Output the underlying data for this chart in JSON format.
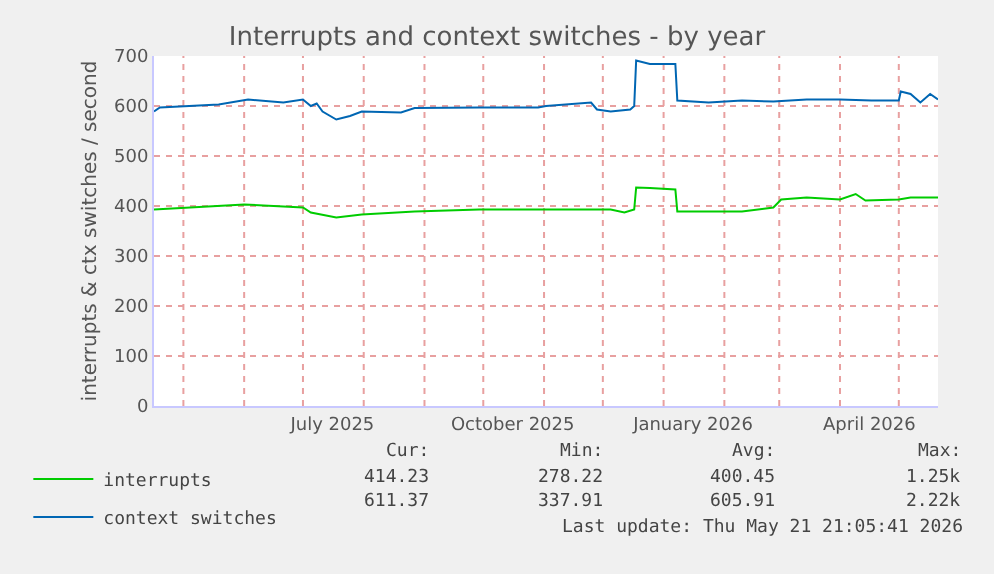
{
  "chart_data": {
    "type": "line",
    "title": "Interrupts and context switches - by year",
    "ylabel": "interrupts & ctx switches / second",
    "xlim": [
      "2025-04-16",
      "2026-05-21"
    ],
    "xticks": [
      {
        "value": "2025-05-01",
        "label": null
      },
      {
        "value": "2025-06-01",
        "label": null
      },
      {
        "value": "2025-07-01",
        "label": null
      },
      {
        "value": "2025-07-16",
        "label": "July 2025"
      },
      {
        "value": "2025-08-01",
        "label": null
      },
      {
        "value": "2025-09-01",
        "label": null
      },
      {
        "value": "2025-10-01",
        "label": null
      },
      {
        "value": "2025-10-16",
        "label": "October 2025"
      },
      {
        "value": "2025-11-01",
        "label": null
      },
      {
        "value": "2025-12-01",
        "label": null
      },
      {
        "value": "2026-01-01",
        "label": null
      },
      {
        "value": "2026-01-16",
        "label": "January 2026"
      },
      {
        "value": "2026-02-01",
        "label": null
      },
      {
        "value": "2026-03-01",
        "label": null
      },
      {
        "value": "2026-04-01",
        "label": null
      },
      {
        "value": "2026-04-16",
        "label": "April 2026"
      },
      {
        "value": "2026-05-01",
        "label": null
      }
    ],
    "ylim": [
      0,
      700
    ],
    "yticks": [
      0,
      100,
      200,
      300,
      400,
      500,
      600,
      700
    ],
    "grid": true,
    "legend": "bottom left",
    "series": [
      {
        "name": "interrupts",
        "color": "#00cc00",
        "x": [
          "2025-04-16",
          "2025-06-01",
          "2025-06-21",
          "2025-07-01",
          "2025-07-05",
          "2025-07-18",
          "2025-07-31",
          "2025-08-27",
          "2025-09-29",
          "2025-12-05",
          "2025-12-12",
          "2025-12-17",
          "2025-12-18",
          "2025-12-25",
          "2026-01-07",
          "2026-01-08",
          "2026-02-10",
          "2026-02-26",
          "2026-03-02",
          "2026-03-15",
          "2026-04-01",
          "2026-04-09",
          "2026-04-14",
          "2026-05-01",
          "2026-05-07",
          "2026-05-21"
        ],
        "values": [
          393,
          403,
          399,
          397,
          387,
          377,
          383,
          389,
          393,
          393,
          387,
          393,
          437,
          436,
          433,
          389,
          389,
          397,
          413,
          417,
          413,
          424,
          411,
          413,
          417,
          417
        ]
      },
      {
        "name": "context switches",
        "color": "#0066b3",
        "x": [
          "2025-04-16",
          "2025-04-19",
          "2025-05-19",
          "2025-06-03",
          "2025-06-21",
          "2025-07-01",
          "2025-07-05",
          "2025-07-08",
          "2025-07-11",
          "2025-07-18",
          "2025-07-25",
          "2025-07-31",
          "2025-08-20",
          "2025-08-27",
          "2025-09-29",
          "2025-10-29",
          "2025-11-02",
          "2025-11-25",
          "2025-11-28",
          "2025-12-05",
          "2025-12-15",
          "2025-12-17",
          "2025-12-18",
          "2025-12-25",
          "2026-01-07",
          "2026-01-08",
          "2026-01-24",
          "2026-02-10",
          "2026-02-26",
          "2026-03-15",
          "2026-04-01",
          "2026-04-17",
          "2026-05-01",
          "2026-05-02",
          "2026-05-07",
          "2026-05-12",
          "2026-05-17",
          "2026-05-21"
        ],
        "values": [
          589,
          597,
          603,
          613,
          607,
          613,
          600,
          605,
          589,
          573,
          580,
          589,
          587,
          596,
          597,
          597,
          600,
          607,
          593,
          589,
          593,
          600,
          691,
          684,
          684,
          611,
          607,
          611,
          609,
          613,
          613,
          611,
          611,
          629,
          624,
          607,
          624,
          613
        ]
      }
    ],
    "annotations": [
      "Cur:",
      "Min:",
      "Avg:",
      "Max:",
      "414.23",
      "278.22",
      "400.45",
      "1.25k",
      "611.37",
      "337.91",
      "605.91",
      "2.22k",
      "Last update: Thu May 21 21:05:41 2026"
    ]
  }
}
